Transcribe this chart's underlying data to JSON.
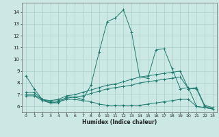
{
  "bg_color": "#cce8e5",
  "line_color": "#1a7a6e",
  "grid_color": "#aacfcc",
  "xlabel": "Humidex (Indice chaleur)",
  "xlim": [
    -0.5,
    23.5
  ],
  "ylim": [
    5.5,
    14.8
  ],
  "yticks": [
    6,
    7,
    8,
    9,
    10,
    11,
    12,
    13,
    14
  ],
  "xticks": [
    0,
    1,
    2,
    3,
    4,
    5,
    6,
    7,
    8,
    9,
    10,
    11,
    12,
    13,
    14,
    15,
    16,
    17,
    18,
    19,
    20,
    21,
    22,
    23
  ],
  "series": [
    {
      "x": [
        0,
        1,
        2,
        3,
        4,
        5,
        6,
        7,
        8,
        9,
        10,
        11,
        12,
        13,
        14,
        15,
        16,
        17,
        18,
        19,
        20,
        21,
        22,
        23
      ],
      "y": [
        8.6,
        7.5,
        6.6,
        6.3,
        6.3,
        6.8,
        6.8,
        6.6,
        7.8,
        10.6,
        13.2,
        13.5,
        14.2,
        12.3,
        8.5,
        8.4,
        10.8,
        10.9,
        9.2,
        7.5,
        7.6,
        6.0,
        5.9,
        5.8
      ]
    },
    {
      "x": [
        0,
        1,
        2,
        3,
        4,
        5,
        6,
        7,
        8,
        9,
        10,
        11,
        12,
        13,
        14,
        15,
        16,
        17,
        18,
        19,
        20,
        21,
        22,
        23
      ],
      "y": [
        7.2,
        7.2,
        6.6,
        6.5,
        6.6,
        6.9,
        7.0,
        7.2,
        7.4,
        7.6,
        7.8,
        7.9,
        8.1,
        8.3,
        8.5,
        8.6,
        8.7,
        8.8,
        8.9,
        9.0,
        7.5,
        7.6,
        6.1,
        5.9
      ]
    },
    {
      "x": [
        0,
        1,
        2,
        3,
        4,
        5,
        6,
        7,
        8,
        9,
        10,
        11,
        12,
        13,
        14,
        15,
        16,
        17,
        18,
        19,
        20,
        21,
        22,
        23
      ],
      "y": [
        7.0,
        7.0,
        6.6,
        6.4,
        6.5,
        6.7,
        6.8,
        6.9,
        7.1,
        7.3,
        7.5,
        7.6,
        7.7,
        7.8,
        8.0,
        8.1,
        8.2,
        8.3,
        8.4,
        8.5,
        7.5,
        7.5,
        6.0,
        5.8
      ]
    },
    {
      "x": [
        0,
        1,
        2,
        3,
        4,
        5,
        6,
        7,
        8,
        9,
        10,
        11,
        12,
        13,
        14,
        15,
        16,
        17,
        18,
        19,
        20,
        21,
        22,
        23
      ],
      "y": [
        6.9,
        6.9,
        6.5,
        6.3,
        6.4,
        6.6,
        6.6,
        6.5,
        6.4,
        6.2,
        6.1,
        6.1,
        6.1,
        6.1,
        6.1,
        6.2,
        6.3,
        6.4,
        6.5,
        6.6,
        6.6,
        6.0,
        5.9,
        5.8
      ]
    }
  ]
}
